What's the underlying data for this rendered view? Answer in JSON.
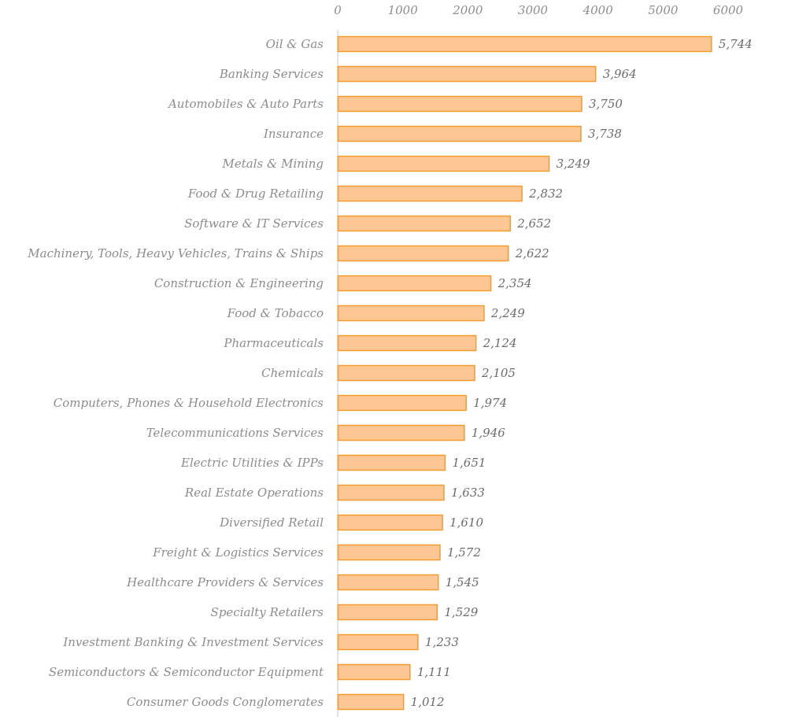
{
  "chart_data": {
    "type": "bar",
    "orientation": "horizontal",
    "title": "",
    "xlabel": "",
    "ylabel": "",
    "x_axis_position": "top",
    "xlim": [
      0,
      6000
    ],
    "x_ticks": [
      0,
      1000,
      2000,
      3000,
      4000,
      5000,
      6000
    ],
    "x_tick_labels": [
      "0",
      "1000",
      "2000",
      "3000",
      "4000",
      "5000",
      "6000"
    ],
    "grid": false,
    "legend": "none",
    "categories": [
      "Oil & Gas",
      "Banking Services",
      "Automobiles & Auto Parts",
      "Insurance",
      "Metals & Mining",
      "Food & Drug Retailing",
      "Software & IT Services",
      "Machinery, Tools, Heavy Vehicles, Trains & Ships",
      "Construction & Engineering",
      "Food & Tobacco",
      "Pharmaceuticals",
      "Chemicals",
      "Computers, Phones & Household Electronics",
      "Telecommunications Services",
      "Electric Utilities & IPPs",
      "Real Estate Operations",
      "Diversified Retail",
      "Freight & Logistics Services",
      "Healthcare Providers & Services",
      "Specialty Retailers",
      "Investment Banking & Investment Services",
      "Semiconductors & Semiconductor Equipment",
      "Consumer Goods Conglomerates"
    ],
    "values": [
      5744,
      3964,
      3750,
      3738,
      3249,
      2832,
      2652,
      2622,
      2354,
      2249,
      2124,
      2105,
      1974,
      1946,
      1651,
      1633,
      1610,
      1572,
      1545,
      1529,
      1233,
      1111,
      1012
    ],
    "data_labels": [
      "5,744",
      "3,964",
      "3,750",
      "3,738",
      "3,249",
      "2,832",
      "2,652",
      "2,622",
      "2,354",
      "2,249",
      "2,124",
      "2,105",
      "1,974",
      "1,946",
      "1,651",
      "1,633",
      "1,610",
      "1,572",
      "1,545",
      "1,529",
      "1,233",
      "1,111",
      "1,012"
    ],
    "colors": {
      "bar_fill": "#fcc795",
      "bar_stroke": "#f59a2c",
      "axis_line": "#d9d9d9",
      "label_text": "#8c8c8c",
      "value_text": "#6b6b6b"
    }
  }
}
